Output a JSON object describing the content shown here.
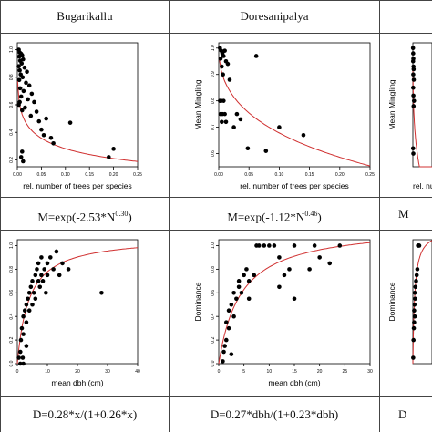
{
  "sites": [
    "Bugarikallu",
    "Doresanipalya",
    ""
  ],
  "equations": {
    "mingling": [
      {
        "prefix": "M=exp(-2.53*N",
        "exp": "0.30",
        "suffix": ")"
      },
      {
        "prefix": "M=exp(-1.12*N",
        "exp": "0.46",
        "suffix": ")"
      },
      {
        "prefix": "M",
        "exp": "",
        "suffix": ""
      }
    ],
    "dominance": [
      {
        "text": "D=0.28*x/(1+0.26*x)"
      },
      {
        "text": "D=0.27*dbh/(1+0.23*dbh)"
      },
      {
        "text": "D"
      }
    ]
  },
  "chart_data": [
    {
      "type": "scatter",
      "title": "Bugarikallu",
      "xlabel": "rel. number of trees per species",
      "ylabel": "",
      "xlim": [
        0,
        0.25
      ],
      "ylim": [
        0.15,
        1.05
      ],
      "xticks": [
        "0.00",
        "0.05",
        "0.10",
        "0.15",
        "0.20",
        "0.25"
      ],
      "yticks": [
        "0.2",
        "0.4",
        "0.6",
        "0.8",
        "1.0"
      ],
      "fit": {
        "kind": "mingling",
        "a": 2.53,
        "b": 0.3
      },
      "points": [
        [
          0.003,
          1.0
        ],
        [
          0.005,
          0.98
        ],
        [
          0.004,
          0.95
        ],
        [
          0.008,
          0.97
        ],
        [
          0.01,
          0.96
        ],
        [
          0.006,
          0.92
        ],
        [
          0.012,
          0.93
        ],
        [
          0.003,
          0.88
        ],
        [
          0.009,
          0.9
        ],
        [
          0.015,
          0.87
        ],
        [
          0.005,
          0.85
        ],
        [
          0.02,
          0.84
        ],
        [
          0.007,
          0.82
        ],
        [
          0.011,
          0.8
        ],
        [
          0.004,
          0.78
        ],
        [
          0.018,
          0.76
        ],
        [
          0.025,
          0.74
        ],
        [
          0.006,
          0.72
        ],
        [
          0.013,
          0.7
        ],
        [
          0.03,
          0.68
        ],
        [
          0.008,
          0.66
        ],
        [
          0.022,
          0.64
        ],
        [
          0.005,
          0.62
        ],
        [
          0.035,
          0.62
        ],
        [
          0.016,
          0.58
        ],
        [
          0.01,
          0.56
        ],
        [
          0.04,
          0.55
        ],
        [
          0.028,
          0.52
        ],
        [
          0.06,
          0.5
        ],
        [
          0.045,
          0.48
        ],
        [
          0.11,
          0.47
        ],
        [
          0.05,
          0.42
        ],
        [
          0.07,
          0.36
        ],
        [
          0.075,
          0.32
        ],
        [
          0.055,
          0.38
        ],
        [
          0.2,
          0.28
        ],
        [
          0.19,
          0.22
        ],
        [
          0.01,
          0.26
        ],
        [
          0.008,
          0.22
        ],
        [
          0.012,
          0.19
        ],
        [
          0.003,
          0.6
        ]
      ]
    },
    {
      "type": "scatter",
      "title": "Doresanipalya",
      "xlabel": "rel. number of trees per species",
      "ylabel": "Mean Mingling",
      "xlim": [
        0,
        0.25
      ],
      "ylim": [
        0.55,
        1.02
      ],
      "xticks": [
        "0.00",
        "0.05",
        "0.10",
        "0.15",
        "0.20",
        "0.25"
      ],
      "yticks": [
        "0.6",
        "0.7",
        "0.8",
        "0.9",
        "1.0"
      ],
      "fit": {
        "kind": "mingling",
        "a": 1.12,
        "b": 0.46
      },
      "points": [
        [
          0.002,
          1.0
        ],
        [
          0.004,
          0.99
        ],
        [
          0.006,
          0.98
        ],
        [
          0.008,
          0.97
        ],
        [
          0.01,
          0.99
        ],
        [
          0.003,
          0.96
        ],
        [
          0.012,
          0.95
        ],
        [
          0.005,
          0.93
        ],
        [
          0.015,
          0.94
        ],
        [
          0.007,
          0.9
        ],
        [
          0.018,
          0.88
        ],
        [
          0.062,
          0.97
        ],
        [
          0.002,
          0.8
        ],
        [
          0.004,
          0.8
        ],
        [
          0.008,
          0.8
        ],
        [
          0.003,
          0.75
        ],
        [
          0.006,
          0.75
        ],
        [
          0.01,
          0.75
        ],
        [
          0.005,
          0.72
        ],
        [
          0.012,
          0.72
        ],
        [
          0.03,
          0.75
        ],
        [
          0.036,
          0.73
        ],
        [
          0.048,
          0.62
        ],
        [
          0.078,
          0.61
        ],
        [
          0.1,
          0.7
        ],
        [
          0.14,
          0.67
        ],
        [
          0.025,
          0.7
        ]
      ]
    },
    {
      "type": "scatter",
      "title": "",
      "xlabel": "rel. nu",
      "ylabel": "Mean Mingling",
      "xlim": [
        0,
        0.25
      ],
      "ylim": [
        0.55,
        1.02
      ],
      "xticks": [],
      "yticks": [],
      "fit": {
        "kind": "mingling",
        "a": 1.6,
        "b": 0.4
      },
      "points": [
        [
          0.002,
          1.0
        ],
        [
          0.004,
          0.98
        ],
        [
          0.006,
          0.96
        ],
        [
          0.003,
          0.95
        ],
        [
          0.008,
          0.93
        ],
        [
          0.005,
          0.9
        ],
        [
          0.01,
          0.92
        ],
        [
          0.012,
          0.88
        ],
        [
          0.004,
          0.85
        ],
        [
          0.007,
          0.82
        ],
        [
          0.015,
          0.8
        ],
        [
          0.009,
          0.78
        ],
        [
          0.003,
          0.62
        ],
        [
          0.006,
          0.6
        ]
      ]
    },
    {
      "type": "scatter",
      "title": "Bugarikallu",
      "xlabel": "mean dbh (cm)",
      "ylabel": "",
      "xlim": [
        0,
        40
      ],
      "ylim": [
        0,
        1.05
      ],
      "xticks": [
        "0",
        "10",
        "20",
        "30",
        "40"
      ],
      "yticks": [
        "0.0",
        "0.2",
        "0.4",
        "0.6",
        "0.8",
        "1.0"
      ],
      "fit": {
        "kind": "dominance",
        "a": 0.28,
        "b": 0.26
      },
      "points": [
        [
          0.5,
          0.05
        ],
        [
          1,
          0.1
        ],
        [
          1.2,
          0.2
        ],
        [
          1.5,
          0.3
        ],
        [
          2,
          0.25
        ],
        [
          2,
          0.4
        ],
        [
          2.5,
          0.45
        ],
        [
          3,
          0.35
        ],
        [
          3,
          0.5
        ],
        [
          3.5,
          0.55
        ],
        [
          4,
          0.45
        ],
        [
          4,
          0.6
        ],
        [
          4.5,
          0.65
        ],
        [
          5,
          0.5
        ],
        [
          5,
          0.7
        ],
        [
          5.5,
          0.6
        ],
        [
          6,
          0.75
        ],
        [
          6,
          0.55
        ],
        [
          6.5,
          0.8
        ],
        [
          7,
          0.7
        ],
        [
          7,
          0.85
        ],
        [
          7.5,
          0.65
        ],
        [
          8,
          0.75
        ],
        [
          8,
          0.9
        ],
        [
          8.5,
          0.7
        ],
        [
          9,
          0.8
        ],
        [
          9.5,
          0.6
        ],
        [
          10,
          0.85
        ],
        [
          10,
          0.75
        ],
        [
          11,
          0.9
        ],
        [
          12,
          0.8
        ],
        [
          13,
          0.95
        ],
        [
          14,
          0.75
        ],
        [
          15,
          0.85
        ],
        [
          17,
          0.8
        ],
        [
          28,
          0.6
        ],
        [
          2,
          0.0
        ],
        [
          1,
          0.0
        ],
        [
          3,
          0.15
        ],
        [
          1.8,
          0.05
        ]
      ]
    },
    {
      "type": "scatter",
      "title": "Doresanipalya",
      "xlabel": "mean dbh (cm)",
      "ylabel": "Dominance",
      "xlim": [
        0,
        30
      ],
      "ylim": [
        0,
        1.05
      ],
      "xticks": [
        "0",
        "5",
        "10",
        "15",
        "20",
        "25",
        "30"
      ],
      "yticks": [
        "0.0",
        "0.2",
        "0.4",
        "0.6",
        "0.8",
        "1.0"
      ],
      "fit": {
        "kind": "dominance",
        "a": 0.27,
        "b": 0.23
      },
      "points": [
        [
          0.8,
          0.02
        ],
        [
          1,
          0.1
        ],
        [
          1.5,
          0.2
        ],
        [
          1.5,
          0.35
        ],
        [
          2,
          0.3
        ],
        [
          2,
          0.45
        ],
        [
          2.5,
          0.5
        ],
        [
          3,
          0.4
        ],
        [
          3,
          0.6
        ],
        [
          3.5,
          0.55
        ],
        [
          4,
          0.65
        ],
        [
          4,
          0.7
        ],
        [
          4.5,
          0.6
        ],
        [
          5,
          0.75
        ],
        [
          5.5,
          0.8
        ],
        [
          6,
          0.55
        ],
        [
          6,
          0.7
        ],
        [
          7,
          0.75
        ],
        [
          7.5,
          1.0
        ],
        [
          8,
          1.0
        ],
        [
          9,
          1.0
        ],
        [
          10,
          1.0
        ],
        [
          11,
          1.0
        ],
        [
          12,
          0.9
        ],
        [
          12,
          0.65
        ],
        [
          13,
          0.75
        ],
        [
          14,
          0.8
        ],
        [
          15,
          0.55
        ],
        [
          15,
          1.0
        ],
        [
          18,
          0.8
        ],
        [
          19,
          1.0
        ],
        [
          20,
          0.9
        ],
        [
          22,
          0.85
        ],
        [
          24,
          1.0
        ],
        [
          2.5,
          0.08
        ],
        [
          1.2,
          0.15
        ]
      ]
    },
    {
      "type": "scatter",
      "title": "",
      "xlabel": "",
      "ylabel": "Dominance",
      "xlim": [
        0,
        30
      ],
      "ylim": [
        0,
        1.05
      ],
      "xticks": [],
      "yticks": [],
      "fit": {
        "kind": "dominance",
        "a": 0.4,
        "b": 0.35
      },
      "points": [
        [
          0.5,
          0.05
        ],
        [
          1,
          0.2
        ],
        [
          1.5,
          0.3
        ],
        [
          2,
          0.45
        ],
        [
          2.5,
          0.5
        ],
        [
          3,
          0.6
        ],
        [
          3.5,
          0.55
        ],
        [
          4,
          0.65
        ],
        [
          5,
          0.7
        ],
        [
          6,
          0.75
        ],
        [
          7,
          0.8
        ],
        [
          8,
          1.0
        ],
        [
          9,
          1.0
        ],
        [
          10,
          1.0
        ],
        [
          2,
          0.35
        ],
        [
          3,
          0.4
        ]
      ]
    }
  ]
}
